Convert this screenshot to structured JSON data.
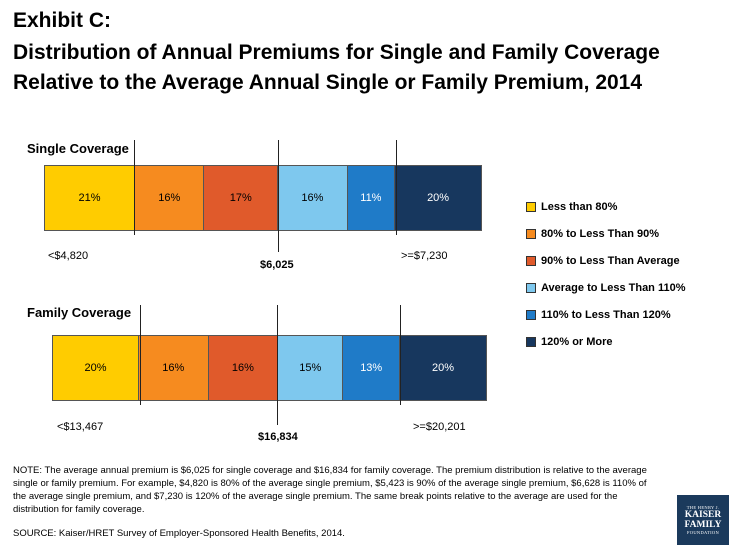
{
  "header": {
    "line1": "Exhibit C:",
    "line2": "Distribution of Annual Premiums for Single and Family Coverage",
    "line3": "Relative to the Average Annual Single or Family Premium, 2014"
  },
  "chart_data": [
    {
      "type": "bar",
      "orientation": "horizontal-stacked",
      "title": "Single Coverage",
      "categories": [
        "Less than 80%",
        "80% to Less Than 90%",
        "90% to Less Than Average",
        "Average to Less Than 110%",
        "110% to Less Than 120%",
        "120% or More"
      ],
      "values": [
        21,
        16,
        17,
        16,
        11,
        20
      ],
      "labels": [
        "21%",
        "16%",
        "17%",
        "16%",
        "11%",
        "20%"
      ],
      "annotations": {
        "low": "<$4,820",
        "avg": "$6,025",
        "high": ">=$7,230"
      }
    },
    {
      "type": "bar",
      "orientation": "horizontal-stacked",
      "title": "Family Coverage",
      "categories": [
        "Less than 80%",
        "80% to Less Than 90%",
        "90% to Less Than Average",
        "Average to Less Than 110%",
        "110% to Less Than 120%",
        "120% or More"
      ],
      "values": [
        20,
        16,
        16,
        15,
        13,
        20
      ],
      "labels": [
        "20%",
        "16%",
        "16%",
        "15%",
        "13%",
        "20%"
      ],
      "annotations": {
        "low": "<$13,467",
        "avg": "$16,834",
        "high": ">=$20,201"
      }
    }
  ],
  "legend": [
    {
      "label": "Less than 80%",
      "color": "#FFCC00"
    },
    {
      "label": "80% to Less Than 90%",
      "color": "#F68B1F"
    },
    {
      "label": "90% to Less Than Average",
      "color": "#E05A2B"
    },
    {
      "label": "Average to Less Than 110%",
      "color": "#7EC8EE"
    },
    {
      "label": "110% to Less Than 120%",
      "color": "#1F7BC8"
    },
    {
      "label": "120% or More",
      "color": "#17375E"
    }
  ],
  "segment_text_colors": [
    "#000000",
    "#000000",
    "#000000",
    "#000000",
    "#FFFFFF",
    "#FFFFFF"
  ],
  "note": "NOTE: The average annual premium is $6,025 for single coverage and $16,834 for family coverage.  The premium distribution is relative to the average single or family premium.  For example, $4,820 is 80% of the average single premium, $5,423 is 90% of the average single premium, $6,628 is 110% of the average single premium, and $7,230 is 120% of the average single premium.  The same break points relative to the average are used for the distribution for family coverage.",
  "source": "SOURCE: Kaiser/HRET Survey of Employer-Sponsored Health Benefits, 2014.",
  "logo": {
    "line1": "THE HENRY J.",
    "line2": "KAISER",
    "line3": "FAMILY",
    "line4": "FOUNDATION"
  }
}
